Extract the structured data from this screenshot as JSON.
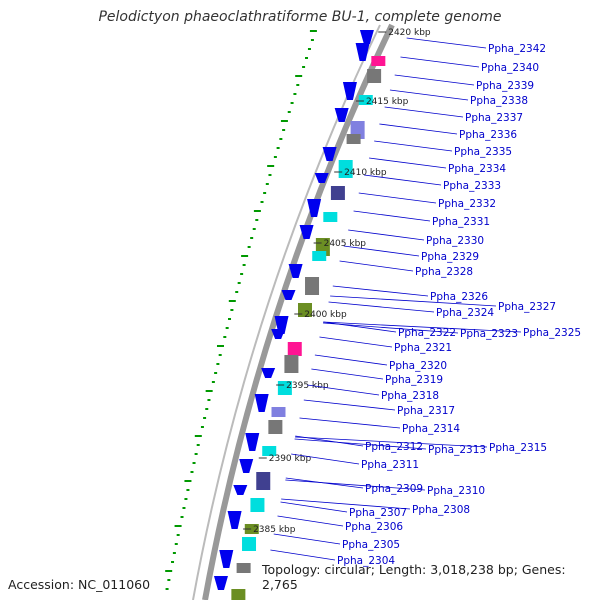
{
  "title": "Pelodictyon phaeoclathratiforme BU-1, complete genome",
  "accession": "Accession: NC_011060",
  "stats": "Topology: circular; Length: 3,018,238 bp; Genes: 2,765",
  "colors": {
    "forward_strand": "#0000ee",
    "reverse_strand_cyan": "#00e0e0",
    "grey_feature": "#777777",
    "label_text": "#0000cc",
    "gc_skew_green": "#009900",
    "backbone": "#888888"
  },
  "kbp_ticks": [
    "2420 kbp",
    "2415 kbp",
    "2410 kbp",
    "2405 kbp",
    "2400 kbp",
    "2395 kbp",
    "2390 kbp",
    "2385 kbp"
  ],
  "genes": [
    "Ppha_2342",
    "Ppha_2340",
    "Ppha_2339",
    "Ppha_2338",
    "Ppha_2337",
    "Ppha_2336",
    "Ppha_2335",
    "Ppha_2334",
    "Ppha_2333",
    "Ppha_2332",
    "Ppha_2331",
    "Ppha_2330",
    "Ppha_2329",
    "Ppha_2328",
    "Ppha_2326",
    "Ppha_2327",
    "Ppha_2324",
    "Ppha_2322",
    "Ppha_2323",
    "Ppha_2325",
    "Ppha_2321",
    "Ppha_2320",
    "Ppha_2319",
    "Ppha_2318",
    "Ppha_2317",
    "Ppha_2314",
    "Ppha_2315",
    "Ppha_2312",
    "Ppha_2313",
    "Ppha_2311",
    "Ppha_2309",
    "Ppha_2310",
    "Ppha_2308",
    "Ppha_2307",
    "Ppha_2306",
    "Ppha_2305",
    "Ppha_2304"
  ]
}
